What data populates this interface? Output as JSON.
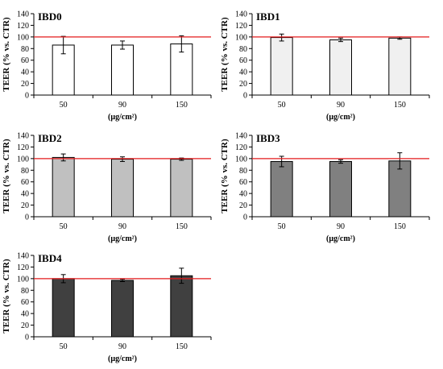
{
  "colors": {
    "reference_line": "#e41a1c",
    "axis": "#000000"
  },
  "chart_data": [
    {
      "type": "bar",
      "title": "IBD0",
      "ylabel": "TEER (% vs. CTR)",
      "xlabel": "(µg/cm²)",
      "categories": [
        "50",
        "90",
        "150"
      ],
      "values": [
        86,
        86,
        88
      ],
      "errors": [
        15,
        7,
        14
      ],
      "ylim": [
        0,
        140
      ],
      "yticks": [
        0,
        20,
        40,
        60,
        80,
        100,
        120,
        140
      ],
      "reference_line": 100,
      "bar_color": "#ffffff"
    },
    {
      "type": "bar",
      "title": "IBD1",
      "ylabel": "TEER (% vs. CTR)",
      "xlabel": "(µg/cm²)",
      "categories": [
        "50",
        "90",
        "150"
      ],
      "values": [
        99,
        95,
        98
      ],
      "errors": [
        6,
        3,
        2
      ],
      "ylim": [
        0,
        140
      ],
      "yticks": [
        0,
        20,
        40,
        60,
        80,
        100,
        120,
        140
      ],
      "reference_line": 100,
      "bar_color": "#f0f0f0"
    },
    {
      "type": "bar",
      "title": "IBD2",
      "ylabel": "TEER (% vs. CTR)",
      "xlabel": "(µg/cm²)",
      "categories": [
        "50",
        "90",
        "150"
      ],
      "values": [
        102,
        99,
        99
      ],
      "errors": [
        6,
        4,
        2
      ],
      "ylim": [
        0,
        140
      ],
      "yticks": [
        0,
        20,
        40,
        60,
        80,
        100,
        120,
        140
      ],
      "reference_line": 100,
      "bar_color": "#c0c0c0"
    },
    {
      "type": "bar",
      "title": "IBD3",
      "ylabel": "TEER (% vs. CTR)",
      "xlabel": "(µg/cm²)",
      "categories": [
        "50",
        "90",
        "150"
      ],
      "values": [
        95,
        95,
        96
      ],
      "errors": [
        9,
        3,
        14
      ],
      "ylim": [
        0,
        140
      ],
      "yticks": [
        0,
        20,
        40,
        60,
        80,
        100,
        120,
        140
      ],
      "reference_line": 100,
      "bar_color": "#808080"
    },
    {
      "type": "bar",
      "title": "IBD4",
      "ylabel": "TEER (% vs. CTR)",
      "xlabel": "(µg/cm²)",
      "categories": [
        "50",
        "90",
        "150"
      ],
      "values": [
        100,
        97,
        105
      ],
      "errors": [
        7,
        2,
        13
      ],
      "ylim": [
        0,
        140
      ],
      "yticks": [
        0,
        20,
        40,
        60,
        80,
        100,
        120,
        140
      ],
      "reference_line": 100,
      "bar_color": "#404040"
    }
  ]
}
